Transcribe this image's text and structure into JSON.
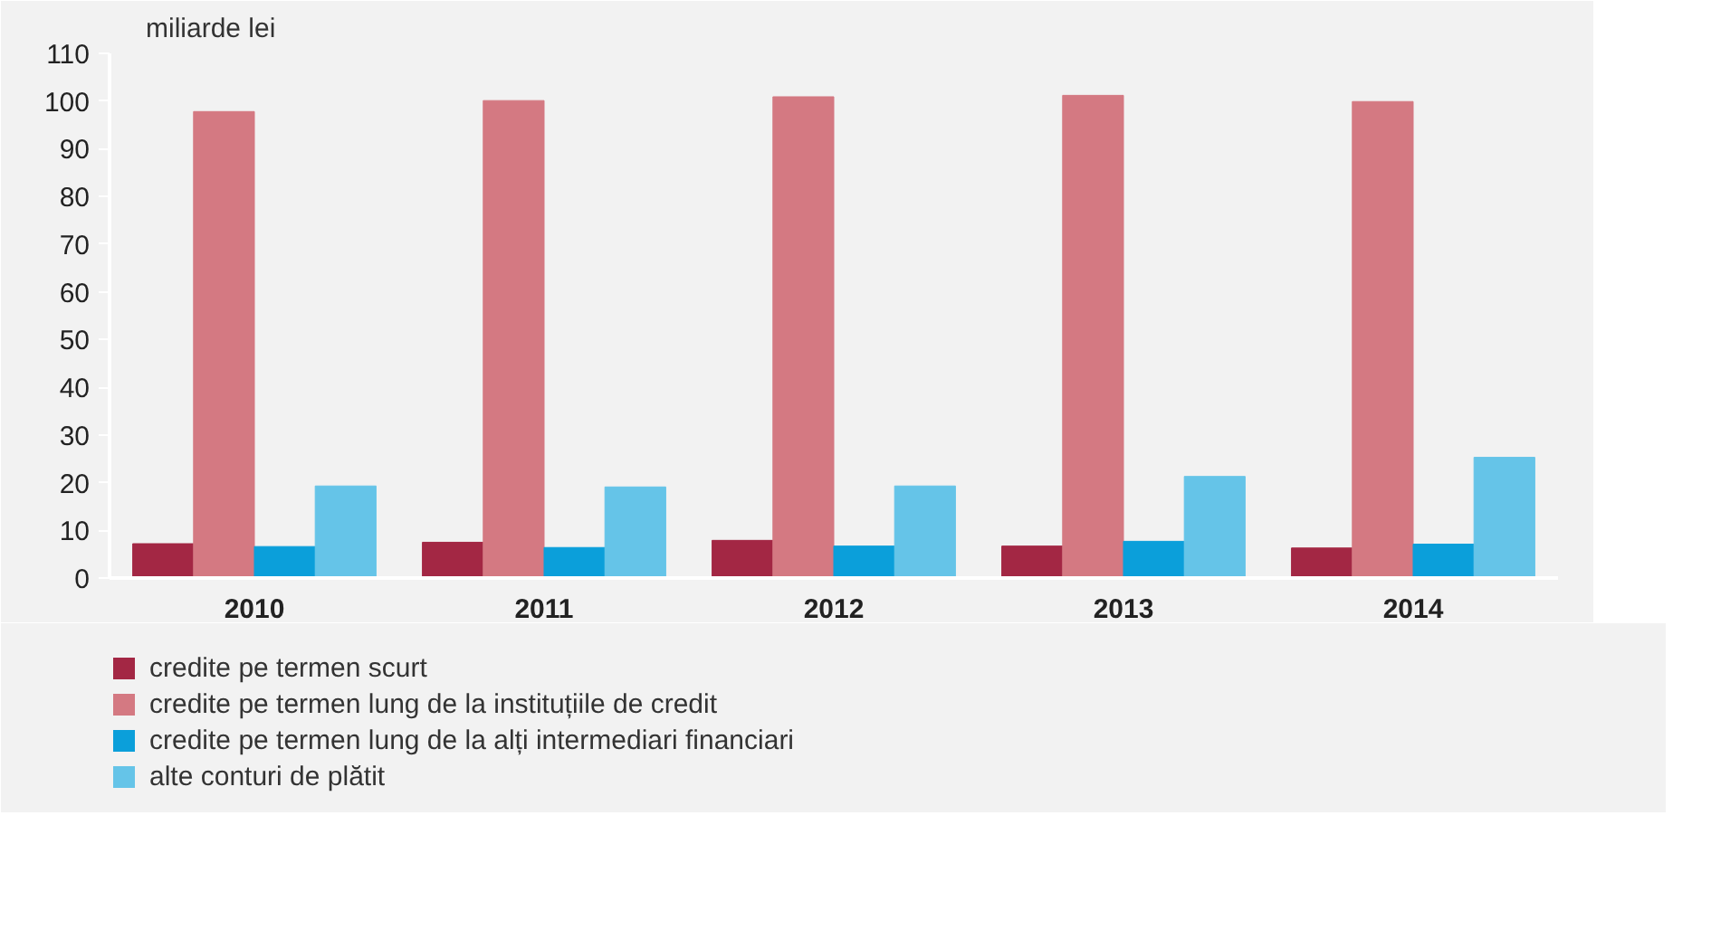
{
  "chart_data": {
    "type": "bar",
    "ylabel": "miliarde lei",
    "categories": [
      "2010",
      "2011",
      "2012",
      "2013",
      "2014"
    ],
    "series": [
      {
        "name": "credite pe termen scurt",
        "color": "#a32744",
        "values": [
          7.2,
          7.5,
          7.9,
          6.7,
          6.3
        ]
      },
      {
        "name": "credite pe termen lung de la instituțiile de credit",
        "color": "#d47982",
        "values": [
          97.8,
          100.1,
          100.9,
          101.2,
          99.9
        ]
      },
      {
        "name": "credite pe termen lung de la alți intermediari financiari",
        "color": "#0b9fda",
        "values": [
          6.6,
          6.4,
          6.7,
          7.7,
          7.1
        ]
      },
      {
        "name": "alte conturi de plătit",
        "color": "#65c4e8",
        "values": [
          19.3,
          19.1,
          19.3,
          21.3,
          25.3
        ]
      }
    ],
    "ylim": [
      0,
      110
    ],
    "yticks": [
      0,
      10,
      20,
      30,
      40,
      50,
      60,
      70,
      80,
      90,
      100,
      110
    ],
    "grid": false,
    "legend": "bottom"
  }
}
